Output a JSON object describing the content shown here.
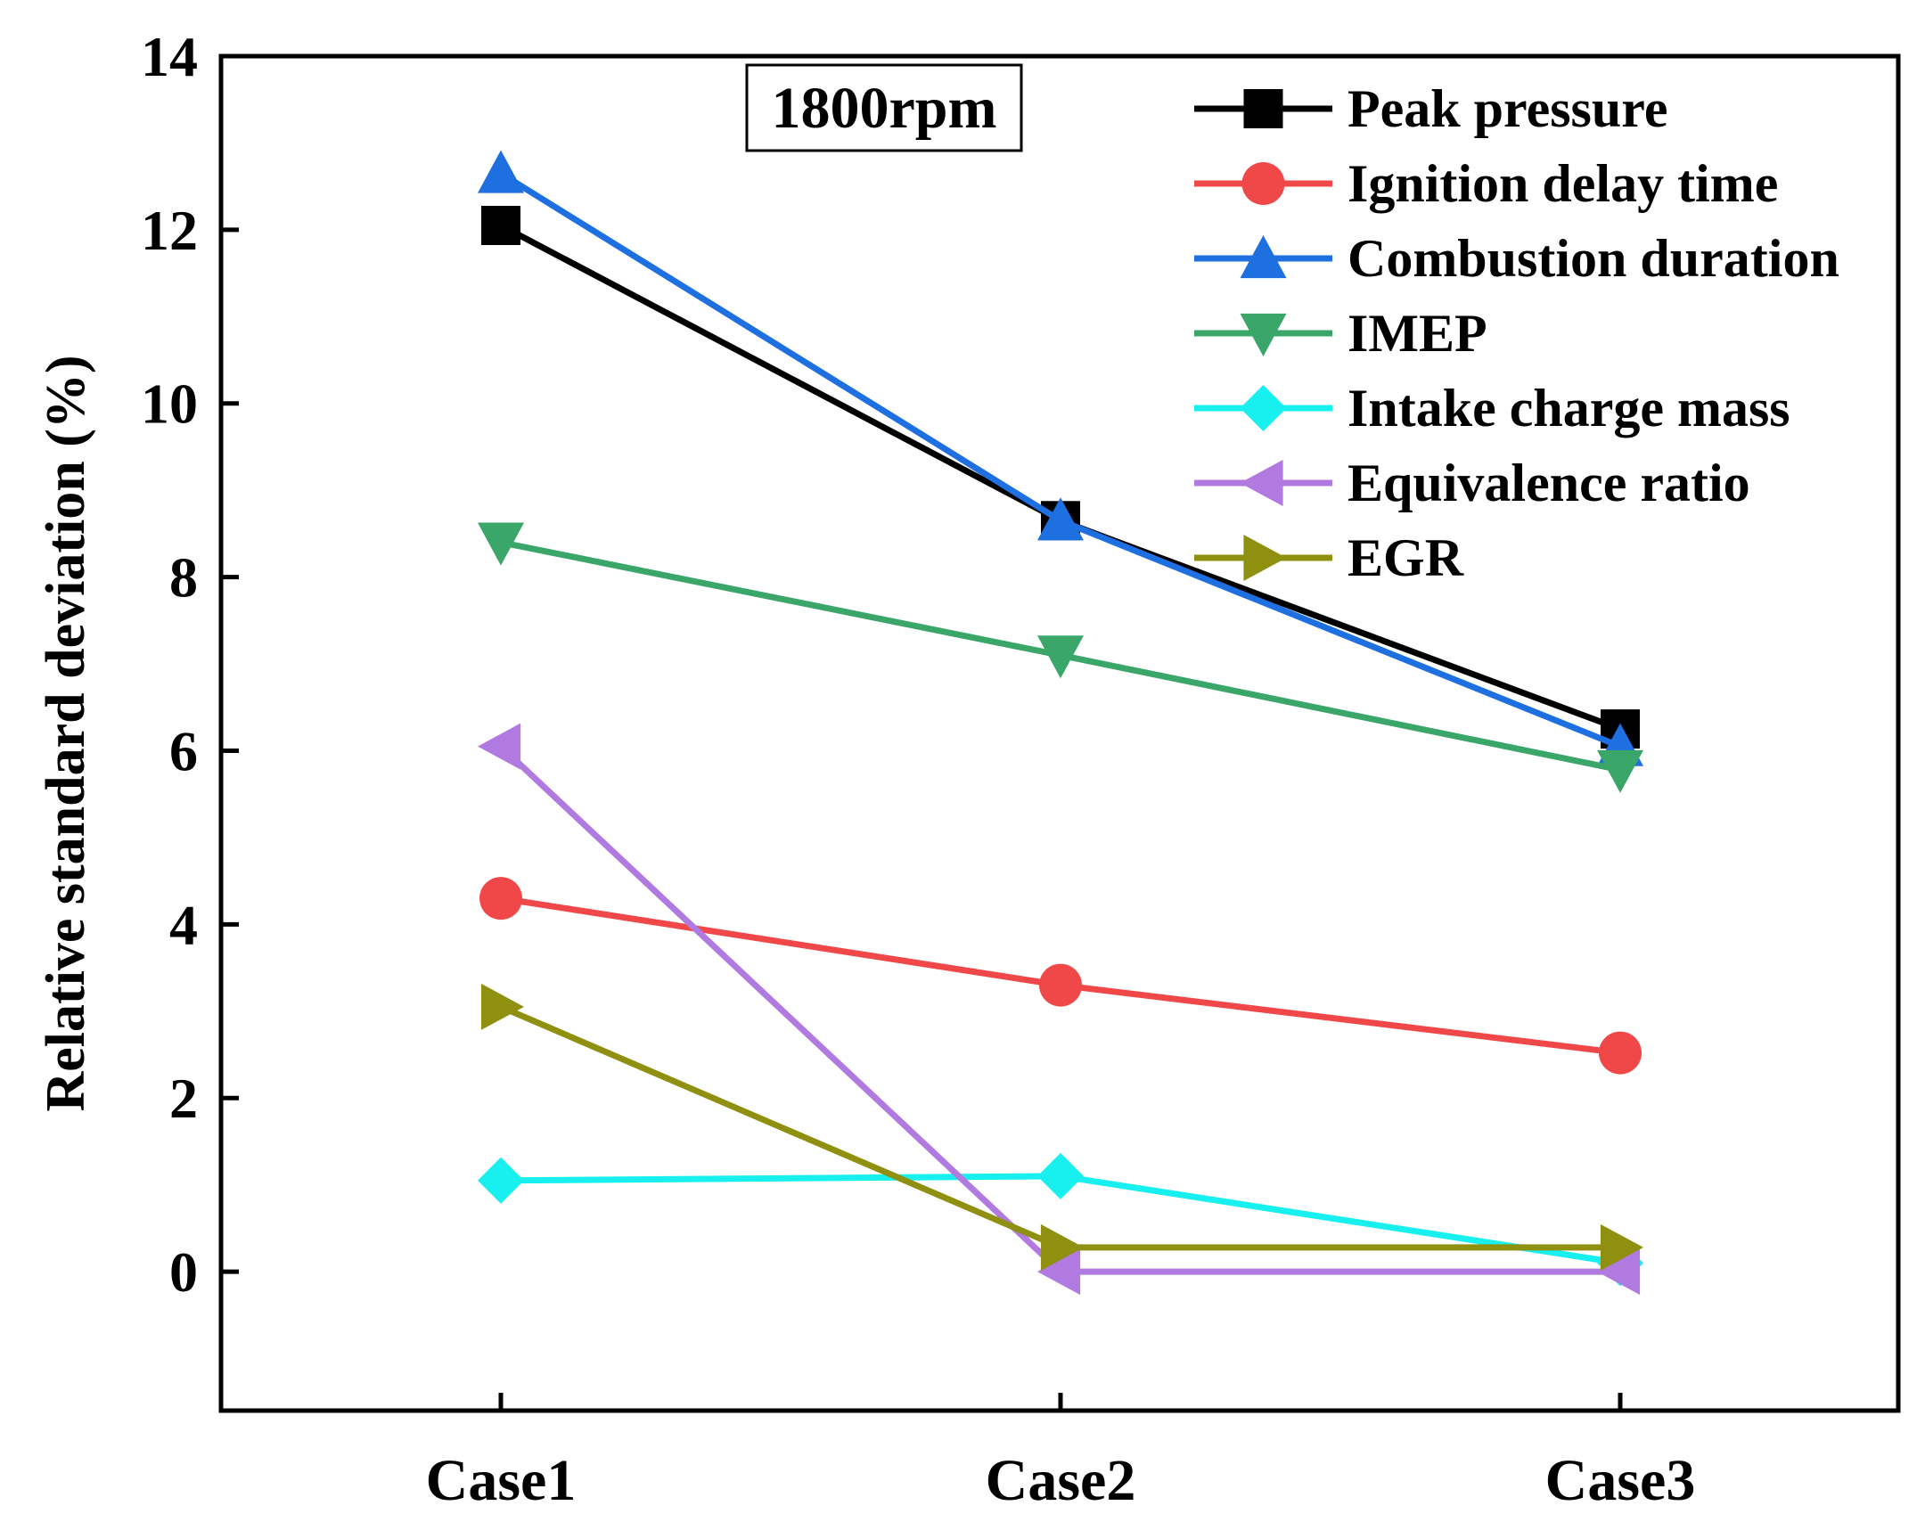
{
  "chart_data": {
    "type": "line",
    "title": "",
    "annotation": "1800rpm",
    "xlabel": "",
    "ylabel": "Relative standard deviation (%)",
    "categories": [
      "Case1",
      "Case2",
      "Case3"
    ],
    "ylim": [
      -1.6,
      14
    ],
    "yticks": [
      0,
      2,
      4,
      6,
      8,
      10,
      12,
      14
    ],
    "ytick_labels": [
      "0",
      "2",
      "4",
      "6",
      "8",
      "10",
      "12",
      "14"
    ],
    "grid": false,
    "legend_position": "top-right",
    "series": [
      {
        "name": "Peak pressure",
        "marker": "square",
        "color": "#000000",
        "values": [
          12.05,
          8.65,
          6.25
        ]
      },
      {
        "name": "Ignition delay time",
        "marker": "circle",
        "color": "#f04848",
        "values": [
          4.3,
          3.3,
          2.52
        ]
      },
      {
        "name": "Combustion duration",
        "marker": "triangle-up",
        "color": "#1e6fe0",
        "values": [
          12.65,
          8.65,
          6.05
        ]
      },
      {
        "name": "IMEP",
        "marker": "triangle-down",
        "color": "#3aa66a",
        "values": [
          8.4,
          7.1,
          5.78
        ]
      },
      {
        "name": "Intake charge mass",
        "marker": "diamond",
        "color": "#18f0f0",
        "values": [
          1.05,
          1.1,
          0.1
        ]
      },
      {
        "name": "Equivalence ratio",
        "marker": "triangle-left",
        "color": "#b07ae0",
        "values": [
          6.05,
          0.0,
          0.0
        ]
      },
      {
        "name": "EGR",
        "marker": "triangle-right",
        "color": "#8f8f10",
        "values": [
          3.05,
          0.28,
          0.28
        ]
      }
    ]
  }
}
